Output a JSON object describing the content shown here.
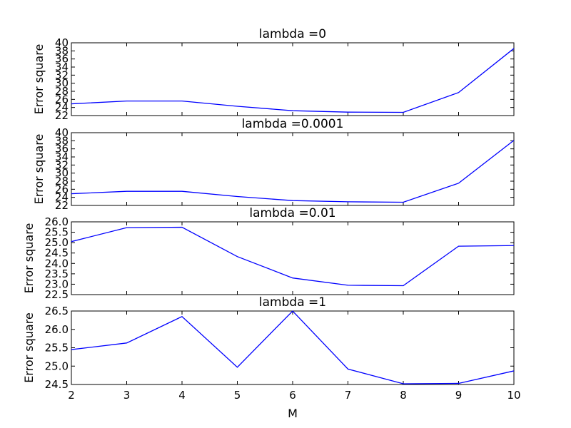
{
  "chart_data": [
    {
      "type": "line",
      "title": "lambda =0",
      "ylabel": "Error square",
      "xlabel": "",
      "x": [
        2,
        3,
        4,
        5,
        6,
        7,
        8,
        9,
        10
      ],
      "values": [
        24.9,
        25.6,
        25.6,
        24.3,
        23.2,
        22.85,
        22.8,
        27.7,
        38.6
      ],
      "ylim": [
        22,
        40
      ],
      "yticks": [
        22,
        24,
        26,
        28,
        30,
        32,
        34,
        36,
        38,
        40
      ],
      "ytick_labels": [
        "22",
        "24",
        "26",
        "28",
        "30",
        "32",
        "34",
        "36",
        "38",
        "40"
      ],
      "xlim": [
        2,
        10
      ],
      "color": "#0000ff"
    },
    {
      "type": "line",
      "title": "lambda =0.0001",
      "ylabel": "Error square",
      "xlabel": "",
      "x": [
        2,
        3,
        4,
        5,
        6,
        7,
        8,
        9,
        10
      ],
      "values": [
        24.9,
        25.5,
        25.5,
        24.2,
        23.2,
        22.9,
        22.8,
        27.5,
        38.1
      ],
      "ylim": [
        22,
        40
      ],
      "yticks": [
        22,
        24,
        26,
        28,
        30,
        32,
        34,
        36,
        38,
        40
      ],
      "ytick_labels": [
        "22",
        "24",
        "26",
        "28",
        "30",
        "32",
        "34",
        "36",
        "38",
        "40"
      ],
      "xlim": [
        2,
        10
      ],
      "color": "#0000ff"
    },
    {
      "type": "line",
      "title": "lambda =0.01",
      "ylabel": "Error square",
      "xlabel": "",
      "x": [
        2,
        3,
        4,
        5,
        6,
        7,
        8,
        9,
        10
      ],
      "values": [
        25.05,
        25.72,
        25.74,
        24.33,
        23.3,
        22.95,
        22.93,
        24.83,
        24.86
      ],
      "ylim": [
        22.5,
        26.0
      ],
      "yticks": [
        22.5,
        23.0,
        23.5,
        24.0,
        24.5,
        25.0,
        25.5,
        26.0
      ],
      "ytick_labels": [
        "22.5",
        "23.0",
        "23.5",
        "24.0",
        "24.5",
        "25.0",
        "25.5",
        "26.0"
      ],
      "xlim": [
        2,
        10
      ],
      "color": "#0000ff"
    },
    {
      "type": "line",
      "title": "lambda =1",
      "ylabel": "Error square",
      "xlabel": "M",
      "x": [
        2,
        3,
        4,
        5,
        6,
        7,
        8,
        9,
        10
      ],
      "values": [
        25.45,
        25.63,
        26.35,
        24.97,
        26.5,
        24.92,
        24.52,
        24.53,
        24.87
      ],
      "ylim": [
        24.5,
        26.5
      ],
      "yticks": [
        24.5,
        25.0,
        25.5,
        26.0,
        26.5
      ],
      "ytick_labels": [
        "24.5",
        "25.0",
        "25.5",
        "26.0",
        "26.5"
      ],
      "xlim": [
        2,
        10
      ],
      "xticks": [
        2,
        3,
        4,
        5,
        6,
        7,
        8,
        9,
        10
      ],
      "xtick_labels": [
        "2",
        "3",
        "4",
        "5",
        "6",
        "7",
        "8",
        "9",
        "10"
      ],
      "color": "#0000ff"
    }
  ]
}
